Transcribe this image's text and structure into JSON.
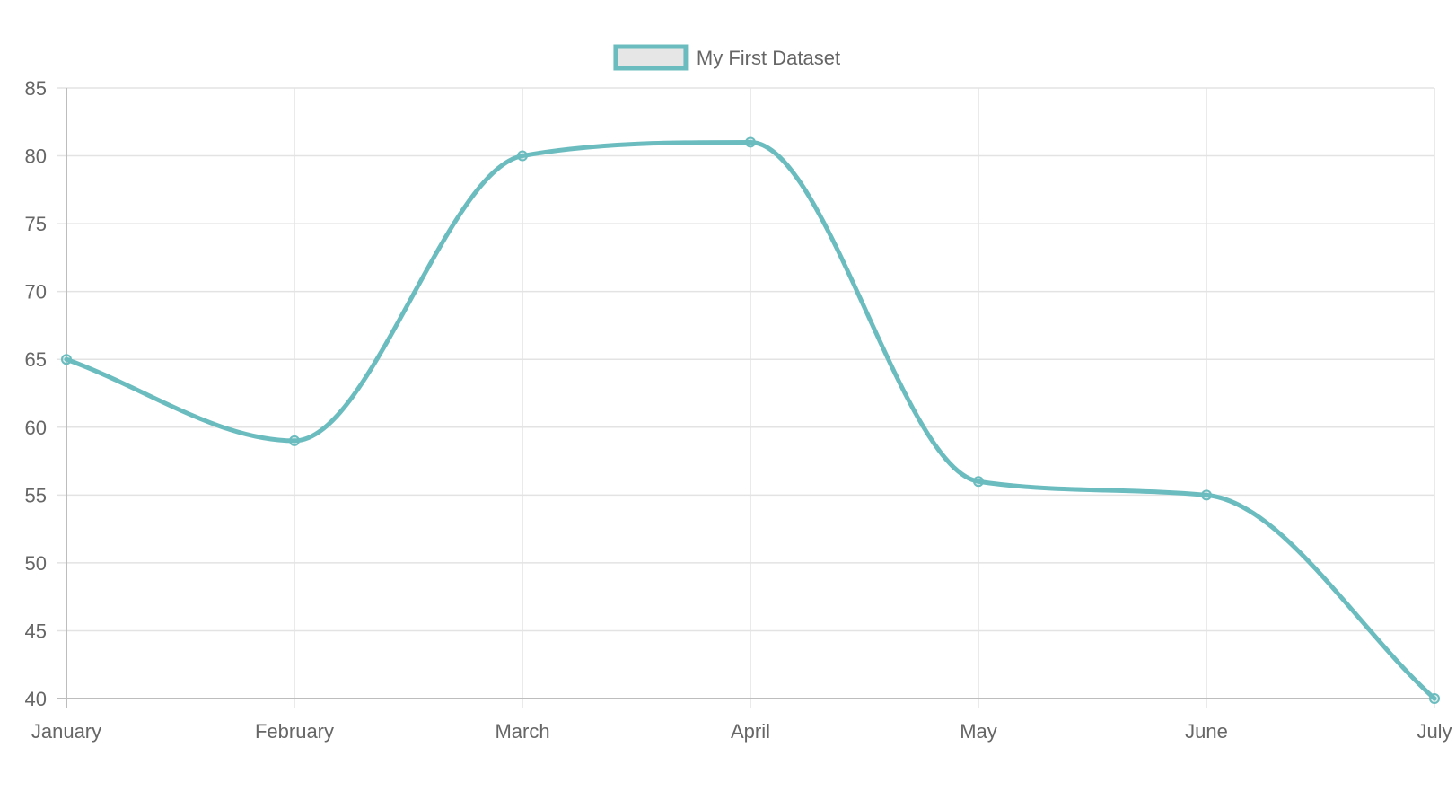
{
  "chart_data": {
    "type": "line",
    "categories": [
      "January",
      "February",
      "March",
      "April",
      "May",
      "June",
      "July"
    ],
    "series": [
      {
        "name": "My First Dataset",
        "values": [
          65,
          59,
          80,
          81,
          56,
          55,
          40
        ],
        "color": "#6bbcbf"
      }
    ],
    "ylim": [
      40,
      85
    ],
    "yticks": [
      40,
      45,
      50,
      55,
      60,
      65,
      70,
      75,
      80,
      85
    ],
    "grid": true,
    "legend_position": "top-center",
    "curve": "smooth"
  }
}
